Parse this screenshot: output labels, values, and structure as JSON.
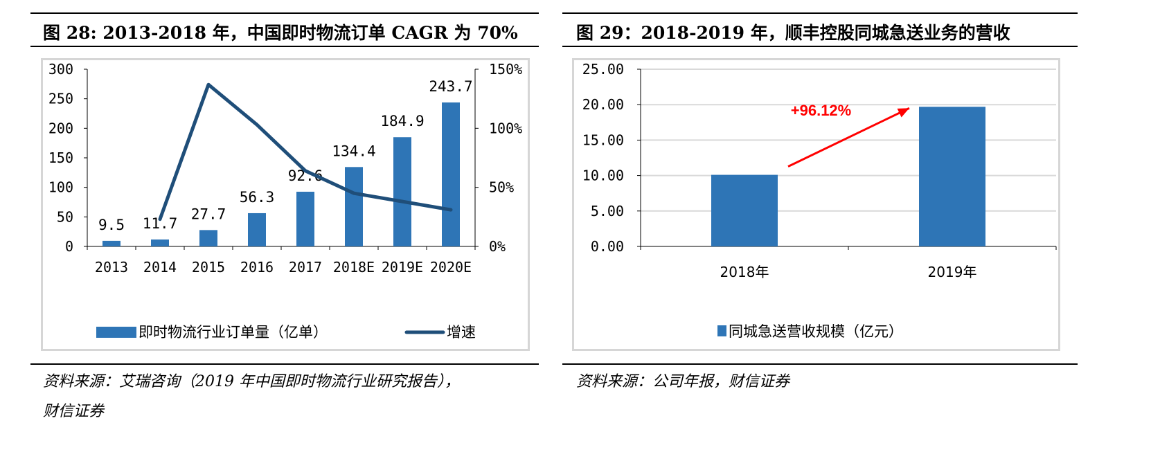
{
  "left": {
    "title": "图 28: 2013-2018 年，中国即时物流订单 CAGR 为 70%",
    "source_line1": "资料来源：艾瑞咨询（2019 年中国即时物流行业研究报告），",
    "source_line2": "财信证券",
    "colors": {
      "bar": "#2e75b6",
      "line": "#1f4e79"
    }
  },
  "right": {
    "title": "图 29：2018-2019 年，顺丰控股同城急送业务的营收",
    "source": "资料来源：公司年报，财信证券",
    "colors": {
      "bar": "#2e75b6",
      "arrow": "#ff0000"
    }
  },
  "chart_data": [
    {
      "type": "bar+line",
      "title": "图 28: 2013-2018 年，中国即时物流订单 CAGR 为 70%",
      "categories": [
        "2013",
        "2014",
        "2015",
        "2016",
        "2017",
        "2018E",
        "2019E",
        "2020E"
      ],
      "series": [
        {
          "name": "即时物流行业订单量（亿单）",
          "type": "bar",
          "axis": "left",
          "values": [
            9.5,
            11.7,
            27.7,
            56.3,
            92.6,
            134.4,
            184.9,
            243.7
          ],
          "labels": [
            "9.5",
            "11.7",
            "27.7",
            "56.3",
            "92.6",
            "134.4",
            "184.9",
            "243.7"
          ]
        },
        {
          "name": "增速",
          "type": "line",
          "axis": "right",
          "values": [
            null,
            0.23,
            1.37,
            1.03,
            0.64,
            0.45,
            0.38,
            0.31
          ]
        }
      ],
      "y_left": {
        "min": 0,
        "max": 300,
        "ticks": [
          "0",
          "50",
          "100",
          "150",
          "200",
          "250",
          "300"
        ]
      },
      "y_right": {
        "min": 0,
        "max": 1.5,
        "ticks": [
          "0%",
          "50%",
          "100%",
          "150%"
        ]
      },
      "legend": [
        "即时物流行业订单量（亿单）",
        "增速"
      ],
      "legend_position": "bottom"
    },
    {
      "type": "bar",
      "title": "图 29：2018-2019 年，顺丰控股同城急送业务的营收",
      "categories": [
        "2018年",
        "2019年"
      ],
      "values": [
        10.1,
        19.7
      ],
      "y": {
        "min": 0,
        "max": 25,
        "ticks": [
          "0.00",
          "5.00",
          "10.00",
          "15.00",
          "20.00",
          "25.00"
        ]
      },
      "annotation": "+96.12%",
      "legend": [
        "同城急送营收规模（亿元）"
      ],
      "legend_position": "bottom",
      "grid": true
    }
  ]
}
